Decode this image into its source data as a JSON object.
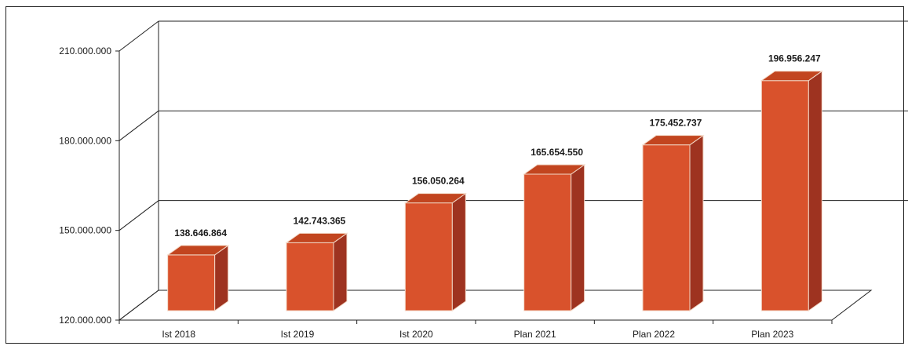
{
  "chart_data": {
    "type": "bar",
    "style": "3d-column",
    "categories": [
      "Ist 2018",
      "Ist 2019",
      "Ist 2020",
      "Plan 2021",
      "Plan 2022",
      "Plan 2023"
    ],
    "values": [
      138646864,
      142743365,
      156050264,
      165654550,
      175452737,
      196956247
    ],
    "value_labels": [
      "138.646.864",
      "142.743.365",
      "156.050.264",
      "165.654.550",
      "175.452.737",
      "196.956.247"
    ],
    "y_ticks": [
      "120.000.000",
      "150.000.000",
      "180.000.000",
      "210.000.000"
    ],
    "y_tick_values": [
      120000000,
      150000000,
      180000000,
      210000000
    ],
    "ylim": [
      120000000,
      210000000
    ],
    "grid": true,
    "legend": "none",
    "colors": {
      "bar_front": "#d9522c",
      "bar_side": "#9e3320",
      "bar_top": "#c2451f",
      "grid": "#222222"
    }
  }
}
